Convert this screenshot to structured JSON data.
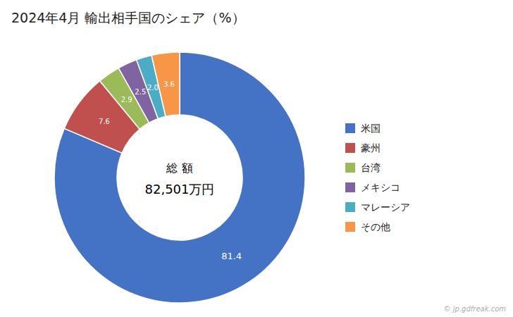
{
  "chart_data": {
    "type": "donut",
    "title": "2024年4月 輸出相手国のシェア（%）",
    "categories": [
      "米国",
      "豪州",
      "台湾",
      "メキシコ",
      "マレーシア",
      "その他"
    ],
    "values": [
      81.4,
      7.6,
      2.9,
      2.5,
      2.0,
      3.6
    ],
    "value_labels": [
      "81.4",
      "7.6",
      "2.9",
      "2.5",
      "2.0",
      "3.6"
    ],
    "colors": [
      "#4472C4",
      "#C0504D",
      "#9BBB59",
      "#8064A2",
      "#4BACC6",
      "#F79646"
    ],
    "annotations": [
      "総 額",
      "82,501万円",
      "© jp.gdfreak.com"
    ],
    "data_labels": true,
    "legend": "right"
  }
}
